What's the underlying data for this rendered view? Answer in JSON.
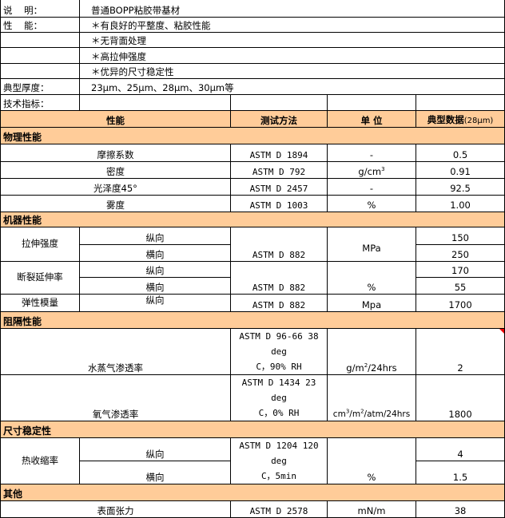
{
  "info": {
    "desc_label": "说    明：",
    "desc_value": "普通BOPP粘胶带基材",
    "perf_label": "性    能：",
    "perf_items": [
      "＊有良好的平整度、粘胶性能",
      "＊无背面处理",
      "＊高拉伸强度",
      "＊优异的尺寸稳定性"
    ],
    "thickness_label": "典型厚度：",
    "thickness_value": "23μm、25μm、28μm、30μm等",
    "spec_label": "技术指标："
  },
  "header": {
    "property": "性能",
    "method": "测试方法",
    "unit": "单 位",
    "typical": "典型数据",
    "typical_note": "(28μm)"
  },
  "colors": {
    "section_bg": "#FFCC99",
    "comment_flag": "#E00000"
  },
  "sections": {
    "physical": {
      "title": "物理性能",
      "rows": [
        {
          "name": "摩擦系数",
          "method": "ASTM D 1894",
          "unit": "-",
          "value": "0.5"
        },
        {
          "name": "密度",
          "method": "ASTM D 792",
          "unit": "g/cm",
          "unit_sup": "3",
          "value": "0.91"
        },
        {
          "name": "光泽度45°",
          "method": "ASTM D 2457",
          "unit": "-",
          "value": "92.5"
        },
        {
          "name": "雾度",
          "method": "ASTM D 1003",
          "unit": "%",
          "value": "1.00"
        }
      ]
    },
    "mechanical": {
      "title": "机器性能",
      "tensile": {
        "name": "拉伸强度",
        "md": "纵向",
        "td": "横向",
        "method": "ASTM D 882",
        "unit": "MPa",
        "md_value": "150",
        "td_value": "250"
      },
      "elongation": {
        "name": "断裂延伸率",
        "md": "纵向",
        "td": "横向",
        "method": "ASTM D 882",
        "unit": "%",
        "md_value": "170",
        "td_value": "55"
      },
      "modulus": {
        "name": "弹性模量",
        "md": "纵向",
        "method": "ASTM D 882",
        "unit": "Mpa",
        "value": "1700"
      }
    },
    "barrier": {
      "title": "阻隔性能",
      "wvtr": {
        "name": "水蒸气渗透率",
        "method_1": "ASTM D 96-66 38 deg",
        "method_2": "C，90% RH",
        "unit_a": "g/m",
        "unit_sup": "2",
        "unit_b": "/24hrs",
        "value": "2"
      },
      "otr": {
        "name": "氧气渗透率",
        "method_1": "ASTM D 1434 23 deg",
        "method_2": "C，0% RH",
        "unit_a": "cm",
        "unit_sup1": "3",
        "unit_b": "/m",
        "unit_sup2": "2",
        "unit_c": "/atm/24hrs",
        "value": "1800"
      }
    },
    "dimensional": {
      "title": "尺寸稳定性",
      "shrink": {
        "name": "热收缩率",
        "md": "纵向",
        "td": "横向",
        "method_1": "ASTM D 1204 120 deg",
        "method_2": "C，5min",
        "unit": "%",
        "md_value": "4",
        "td_value": "1.5"
      }
    },
    "other": {
      "title": "其他",
      "rows": [
        {
          "name": "表面张力",
          "method": "ASTM D 2578",
          "unit": "mN/m",
          "value": "38"
        }
      ]
    }
  }
}
